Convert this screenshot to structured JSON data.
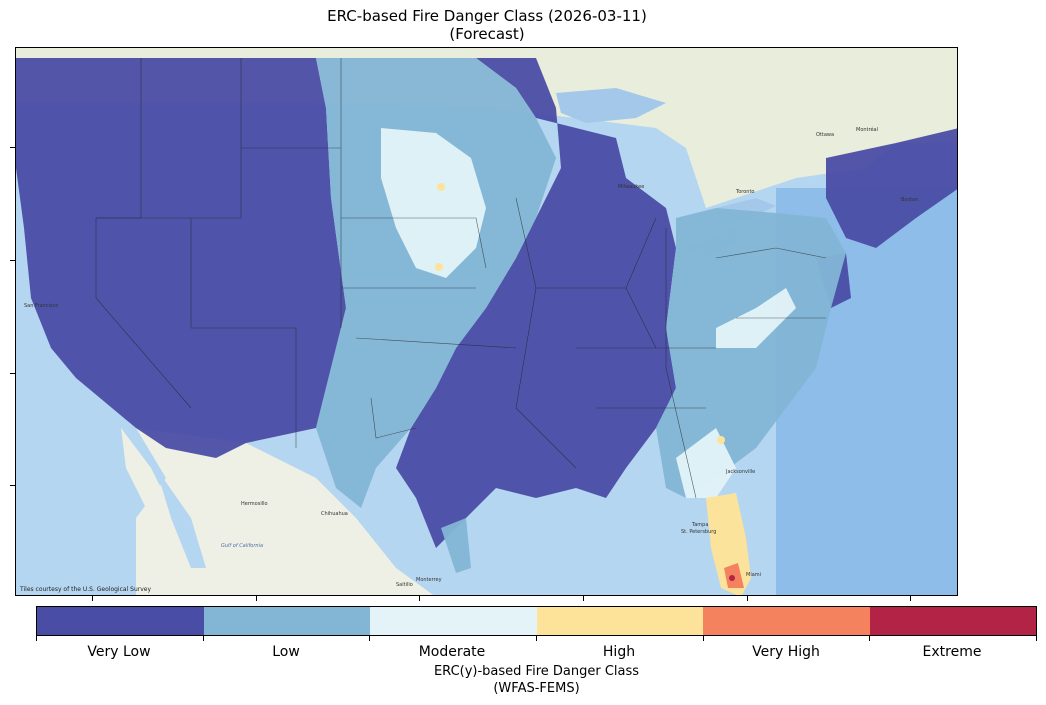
{
  "title": {
    "line1": "ERC-based Fire Danger Class (2026-03-11)",
    "line2": "(Forecast)"
  },
  "map": {
    "credit": "Tiles courtesy of the U.S. Geological Survey",
    "basemap_colors": {
      "ocean": "#a9cfee",
      "land": "#eef0e6",
      "canada": "#e8ecd8",
      "lakes": "#a3c8ea"
    },
    "place_labels": [
      "Hermosillo",
      "Chihuahua",
      "Monterrey",
      "Gulf of California",
      "San Francisco",
      "Milwaukee",
      "Toronto",
      "Ottawa",
      "Montréal",
      "Boston",
      "Jacksonville",
      "Tampa",
      "St. Petersburg",
      "Miami",
      "Saltillo"
    ]
  },
  "colorbar": {
    "title_line1": "ERC(y)-based Fire Danger Class",
    "title_line2": "(WFAS-FEMS)",
    "classes": [
      {
        "label": "Very Low",
        "color": "#4a4da5"
      },
      {
        "label": "Low",
        "color": "#83b5d5"
      },
      {
        "label": "Moderate",
        "color": "#e3f3f8"
      },
      {
        "label": "High",
        "color": "#fde29a"
      },
      {
        "label": "Very High",
        "color": "#f4825f"
      },
      {
        "label": "Extreme",
        "color": "#b32345"
      }
    ]
  }
}
